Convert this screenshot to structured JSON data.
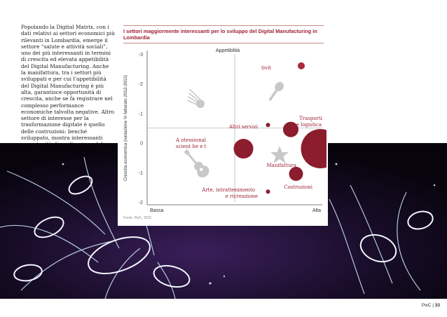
{
  "intro_text": "Popolando la Digital Matrix, con i dati relativi ai settori economici più rilevanti in Lombardia, emerge il settore “salute e attività sociali”, uno dei più interessanti in termini di crescita ed elevata appetibilità del Digital Manufacturing. Anche la manifattura, tra i settori più sviluppati e per cui l’appetibilità del Digital Manufacturing è più alta, garantisce opportunità di crescita, anche se fa registrare nel complesso performance economiche talvolta negative. Altro settore di interesse per la trasformazione digitale è quello delle costruzioni: benché sviluppato, mostra interessanti opportunità di applicazione del “modello digitale”.",
  "footer": {
    "brand": "PwC",
    "separator": "|",
    "page": "33"
  },
  "chart_data": {
    "type": "scatter",
    "title": "I settori maggiormente interessanti per lo sviluppo del Digital Manufacturing in Lombardia",
    "xlabel_top": "Appetibilità",
    "ylabel": "Crescita economica (variazione % fatturato 2012-2013)",
    "x_tick_labels": {
      "low": "Bassa",
      "high": "Alta"
    },
    "ylim": [
      -2,
      3
    ],
    "y_ticks": [
      3,
      2,
      1,
      0,
      -1,
      -2
    ],
    "xlim": [
      0,
      1
    ],
    "grid": "center-cross",
    "source": "Fonte: PwC, 2015",
    "colors": {
      "bubble": "#8c1d2e",
      "bubble_light": "#a82a3c",
      "label": "#9e2135",
      "icon": "#c8c8c8",
      "axis": "#555555"
    },
    "points": [
      {
        "label": "Salute e attività sociali",
        "label_visible": "tivit",
        "x": 0.88,
        "y": 2.6,
        "size": 5
      },
      {
        "label": "Altri servizi",
        "x": 0.69,
        "y": 0.6,
        "size": 3
      },
      {
        "label": "Trasporti e logistica",
        "x": 0.82,
        "y": 0.45,
        "size": 11
      },
      {
        "label": "Attività professionali, scientifiche e tecniche",
        "label_visible_line1": "A       otessional",
        "label_visible_line2": "scient    he e t",
        "x": 0.55,
        "y": -0.2,
        "size": 14
      },
      {
        "label": "",
        "x": 0.99,
        "y": -0.2,
        "size": 28
      },
      {
        "label": "Manifattura",
        "x": 0.86,
        "y": -0.05,
        "size": 0
      },
      {
        "label": "Costruzioni",
        "x": 0.85,
        "y": -1.05,
        "size": 10
      },
      {
        "label": "Arte, intrattenimento e ricreazione",
        "x": 0.69,
        "y": -1.65,
        "size": 3
      }
    ],
    "icons": [
      "comet-icon",
      "microphone-icon",
      "star-icon",
      "guitar-icon"
    ]
  }
}
